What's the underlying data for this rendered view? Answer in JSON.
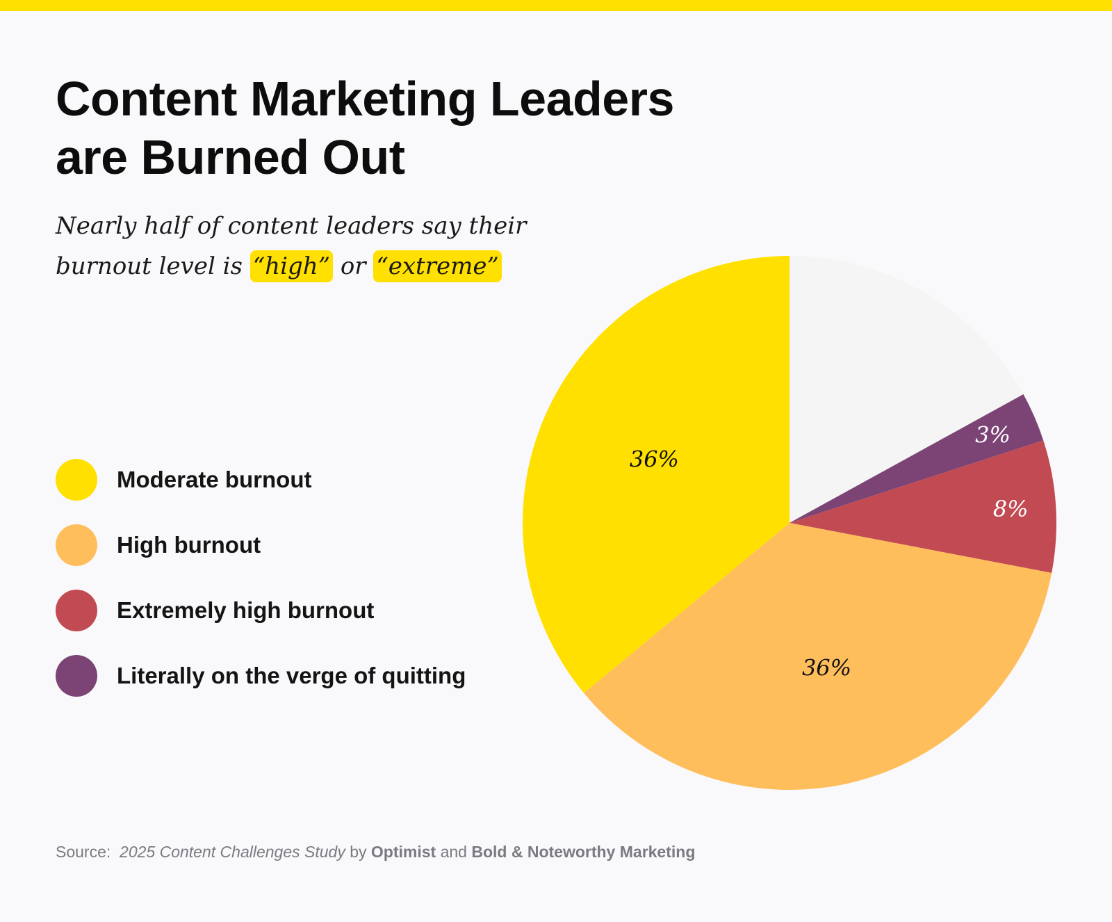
{
  "header": {
    "title_line1": "Content Marketing Leaders",
    "title_line2": "are Burned Out",
    "subtitle_line1": "Nearly half of content leaders say their",
    "subtitle_prefix": "burnout level is",
    "highlight1": "“high”",
    "connector": "or",
    "highlight2": "“extreme”"
  },
  "colors": {
    "accent_bar": "#ffe000",
    "highlight": "#ffe000",
    "remainder_slice": "#f5f5f5"
  },
  "chart_data": {
    "type": "pie",
    "title": "Content Marketing Leaders are Burned Out",
    "start": "12 o'clock, clockwise",
    "slices": [
      {
        "name": "",
        "value": 17,
        "label": "",
        "color": "#f5f5f5",
        "label_color": "#000000"
      },
      {
        "name": "Literally on the verge of quitting",
        "value": 3,
        "label": "3%",
        "color": "#7b4475",
        "label_color": "#ffffff"
      },
      {
        "name": "Extremely high burnout",
        "value": 8,
        "label": "8%",
        "color": "#c24b53",
        "label_color": "#ffffff"
      },
      {
        "name": "High burnout",
        "value": 36,
        "label": "36%",
        "color": "#ffbe5c",
        "label_color": "#111111"
      },
      {
        "name": "Moderate burnout",
        "value": 36,
        "label": "36%",
        "color": "#ffe000",
        "label_color": "#111111"
      }
    ],
    "legend": {
      "placement": "left",
      "entries": [
        {
          "label": "Moderate burnout",
          "color": "#ffe000"
        },
        {
          "label": "High burnout",
          "color": "#ffbe5c"
        },
        {
          "label": "Extremely high burnout",
          "color": "#c24b53"
        },
        {
          "label": "Literally on the verge of quitting",
          "color": "#7b4475"
        }
      ]
    }
  },
  "footer": {
    "source_prefix": "Source:",
    "study": "2025 Content Challenges Study",
    "by": "by",
    "org1": "Optimist",
    "and": "and",
    "org2": "Bold & Noteworthy Marketing"
  }
}
